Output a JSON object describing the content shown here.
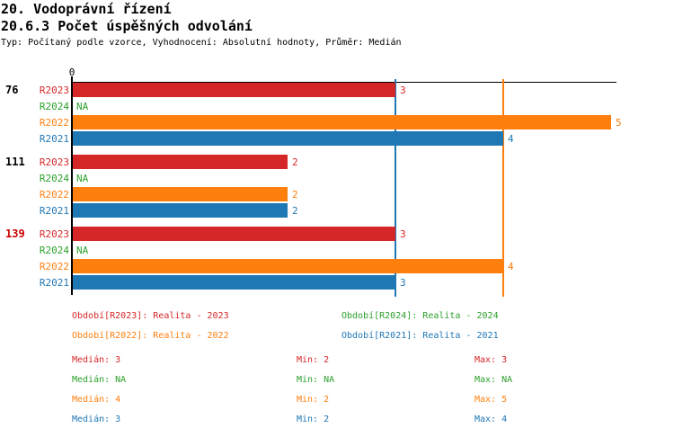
{
  "header": {
    "title1": "20. Vodoprávní řízení",
    "title2": "20.6.3 Počet úspěšných odvolání",
    "subtitle": "Typ: Počítaný podle vzorce, Vyhodnocení: Absolutní hodnoty, Průměr: Medián"
  },
  "chart_data": {
    "type": "bar",
    "orientation": "horizontal",
    "axis_color": "#000000",
    "x_axis": {
      "min": 0,
      "max": 5,
      "tick_labels": [
        "0"
      ]
    },
    "series_order": [
      "R2023",
      "R2024",
      "R2022",
      "R2021"
    ],
    "series_colors": {
      "R2023": "#d62728",
      "R2024": "#2ca02c",
      "R2022": "#ff7f0e",
      "R2021": "#1f77b4"
    },
    "groups": [
      {
        "label": "76",
        "label_color": "#000000",
        "values": {
          "R2023": 3,
          "R2024": null,
          "R2022": 5,
          "R2021": 4
        },
        "value_labels": {
          "R2023": "3",
          "R2024": "NA",
          "R2022": "5",
          "R2021": "4"
        }
      },
      {
        "label": "111",
        "label_color": "#000000",
        "values": {
          "R2023": 2,
          "R2024": null,
          "R2022": 2,
          "R2021": 2
        },
        "value_labels": {
          "R2023": "2",
          "R2024": "NA",
          "R2022": "2",
          "R2021": "2"
        }
      },
      {
        "label": "139",
        "label_color": "#cc0000",
        "values": {
          "R2023": 3,
          "R2024": null,
          "R2022": 4,
          "R2021": 3
        },
        "value_labels": {
          "R2023": "3",
          "R2024": "NA",
          "R2022": "4",
          "R2021": "3"
        }
      }
    ],
    "reference_lines": [
      {
        "series": "R2021",
        "value": 3,
        "meaning": "Medián: 3"
      },
      {
        "series": "R2022",
        "value": 4,
        "meaning": "Medián: 4"
      }
    ]
  },
  "legend": {
    "items": [
      {
        "label": "Období[R2023]: Realita - 2023",
        "color": "#d62728"
      },
      {
        "label": "Období[R2024]: Realita - 2024",
        "color": "#2ca02c"
      },
      {
        "label": "Období[R2022]: Realita - 2022",
        "color": "#ff7f0e"
      },
      {
        "label": "Období[R2021]: Realita - 2021",
        "color": "#1f77b4"
      }
    ]
  },
  "stats": {
    "rows": [
      {
        "median": "Medián: 3",
        "min": "Min: 2",
        "max": "Max: 3",
        "color": "#d62728"
      },
      {
        "median": "Medián: NA",
        "min": "Min: NA",
        "max": "Max: NA",
        "color": "#2ca02c"
      },
      {
        "median": "Medián: 4",
        "min": "Min: 2",
        "max": "Max: 5",
        "color": "#ff7f0e"
      },
      {
        "median": "Medián: 3",
        "min": "Min: 2",
        "max": "Max: 4",
        "color": "#1f77b4"
      }
    ]
  }
}
